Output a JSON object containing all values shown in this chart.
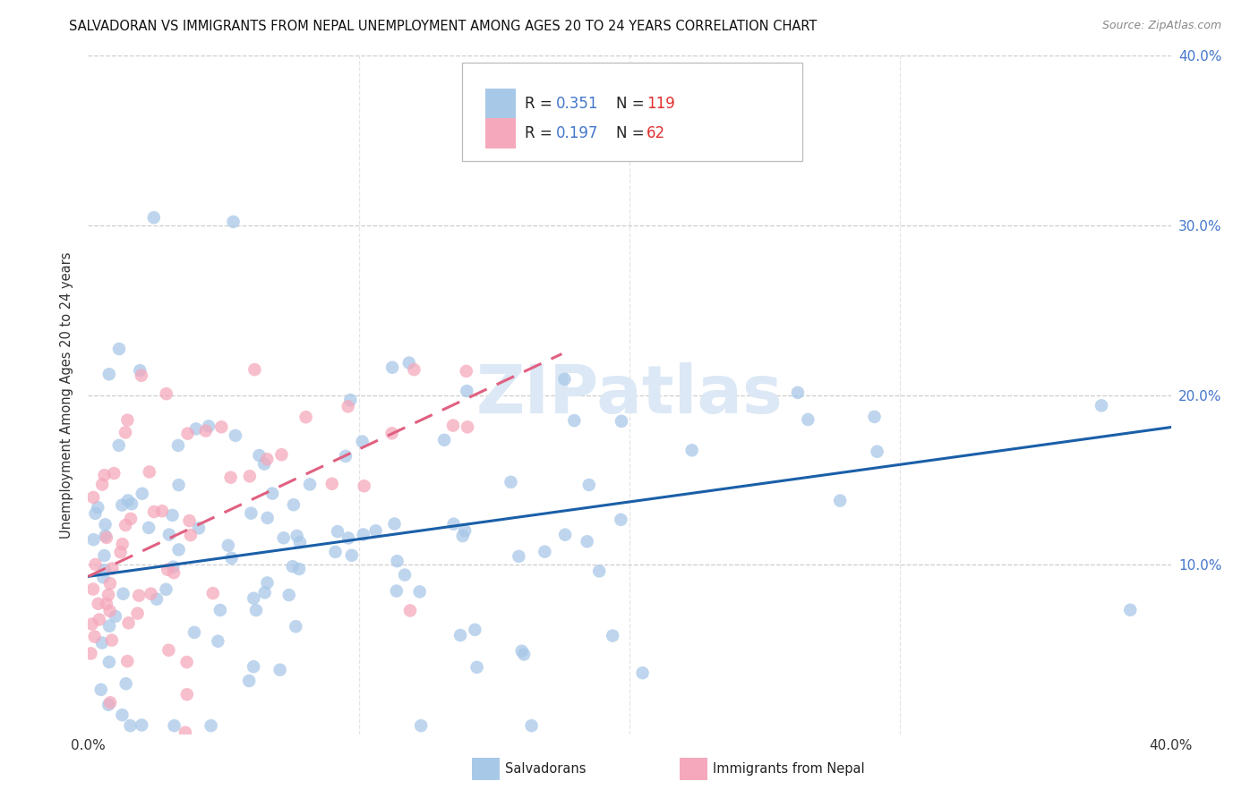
{
  "title": "SALVADORAN VS IMMIGRANTS FROM NEPAL UNEMPLOYMENT AMONG AGES 20 TO 24 YEARS CORRELATION CHART",
  "source": "Source: ZipAtlas.com",
  "ylabel": "Unemployment Among Ages 20 to 24 years",
  "xmin": 0.0,
  "xmax": 0.4,
  "ymin": 0.0,
  "ymax": 0.4,
  "blue_R": "0.351",
  "blue_N": "119",
  "pink_R": "0.197",
  "pink_N": "62",
  "blue_color": "#a8c8e8",
  "pink_color": "#f5a8bc",
  "blue_line_color": "#1a5fa8",
  "pink_line_color": "#e06080",
  "background_color": "#ffffff",
  "watermark_text": "ZIPatlas",
  "watermark_color": "#dce8f5",
  "legend_label_blue": "Salvadorans",
  "legend_label_pink": "Immigrants from Nepal",
  "blue_intercept": 0.093,
  "blue_slope": 0.22,
  "pink_intercept": 0.093,
  "pink_slope": 0.75,
  "grid_color": "#cccccc",
  "tick_label_color": "#4477cc",
  "axis_label_color": "#333333"
}
